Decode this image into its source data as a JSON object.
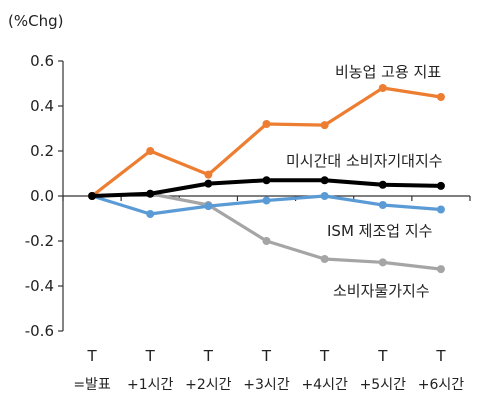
{
  "chart_data": {
    "type": "line",
    "title": "",
    "ylabel": "(%Chg)",
    "xlabel": "",
    "ylim": [
      -0.6,
      0.6
    ],
    "yticks": [
      0.6,
      0.4,
      0.2,
      0.0,
      -0.2,
      -0.4,
      -0.6
    ],
    "ytick_labels": [
      "0.6",
      "0.4",
      "0.2",
      "0.0",
      "-0.2",
      "-0.4",
      "-0.6"
    ],
    "categories": [
      {
        "line1": "T",
        "line2": "=발표"
      },
      {
        "line1": "T",
        "line2": "+1시간"
      },
      {
        "line1": "T",
        "line2": "+2시간"
      },
      {
        "line1": "T",
        "line2": "+3시간"
      },
      {
        "line1": "T",
        "line2": "+4시간"
      },
      {
        "line1": "T",
        "line2": "+5시간"
      },
      {
        "line1": "T",
        "line2": "+6시간"
      }
    ],
    "grid": false,
    "legend": "inline-labels",
    "series": [
      {
        "name": "비농업 고용 지표",
        "color": "#ED7D31",
        "values": [
          0.0,
          0.2,
          0.095,
          0.32,
          0.315,
          0.48,
          0.44
        ]
      },
      {
        "name": "미시간대 소비자기대지수",
        "color": "#000000",
        "values": [
          0.0,
          0.01,
          0.055,
          0.07,
          0.07,
          0.05,
          0.045
        ]
      },
      {
        "name": "ISM 제조업 지수",
        "color": "#5B9BD5",
        "values": [
          0.0,
          -0.08,
          -0.045,
          -0.02,
          0.0,
          -0.04,
          -0.06
        ]
      },
      {
        "name": "소비자물가지수",
        "color": "#A5A5A5",
        "values": [
          0.0,
          0.01,
          -0.04,
          -0.2,
          -0.28,
          -0.295,
          -0.325
        ]
      }
    ]
  }
}
